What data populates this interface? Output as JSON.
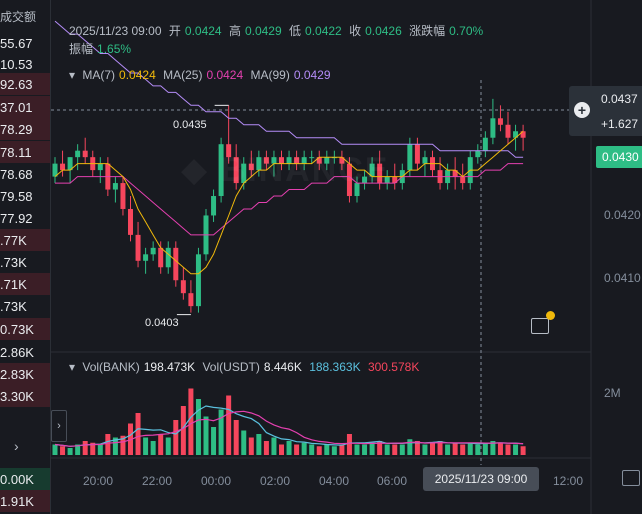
{
  "left_panel": {
    "header": "成交额",
    "values": [
      "55.67",
      "10.53",
      "92.63",
      "37.01",
      "78.29",
      "78.11",
      "78.68",
      "79.58",
      "77.92",
      ".77K",
      ".73K",
      ".71K",
      ".73K",
      "0.73K",
      "2.86K",
      "2.83K",
      "3.30K"
    ],
    "bottom_values": [
      "0.00K",
      "1.91K"
    ],
    "chevron": "›"
  },
  "ohlc": {
    "time": "2025/11/23 09:00",
    "open_label": "开",
    "open": "0.0424",
    "high_label": "高",
    "high": "0.0429",
    "low_label": "低",
    "low": "0.0422",
    "close_label": "收",
    "close": "0.0426",
    "change_label": "涨跌幅",
    "change": "0.70%",
    "amp_label": "振幅",
    "amp": "1.65%"
  },
  "ma": {
    "ma7_label": "MA(7)",
    "ma7": "0.0424",
    "ma25_label": "MA(25)",
    "ma25": "0.0424",
    "ma99_label": "MA(99)",
    "ma99": "0.0429"
  },
  "vol": {
    "bank_label": "Vol(BANK)",
    "bank": "198.473K",
    "usdt_label": "Vol(USDT)",
    "usdt": "8.446K",
    "usdt_ma1": "188.363K",
    "usdt_ma2": "300.578K"
  },
  "price_axis": {
    "crosshair_price": "0.0437",
    "crosshair_pct": "+1.627",
    "current_price": "0.0430",
    "ticks": [
      "0.0420",
      "0.0410"
    ],
    "vol_tick": "2M"
  },
  "hl_labels": {
    "high": "0.0435",
    "low": "0.0403"
  },
  "time_axis": {
    "ticks": [
      "20:00",
      "22:00",
      "00:00",
      "02:00",
      "04:00",
      "06:00",
      "12:00"
    ],
    "crosshair_time": "2025/11/23 09:00"
  },
  "colors": {
    "up": "#2ebd85",
    "down": "#f6465d",
    "ma7": "#f0b90b",
    "ma25": "#e440b0",
    "ma99": "#b48cf7",
    "bg": "#181a20"
  },
  "chart_data": {
    "type": "candlestick",
    "y_range": [
      0.0398,
      0.0442
    ],
    "candles": [
      [
        0.0424,
        0.0427,
        0.0423,
        0.0426
      ],
      [
        0.0426,
        0.0428,
        0.0424,
        0.0425
      ],
      [
        0.0425,
        0.0427,
        0.0423,
        0.0427
      ],
      [
        0.0427,
        0.0429,
        0.0425,
        0.0428
      ],
      [
        0.0428,
        0.043,
        0.0426,
        0.0427
      ],
      [
        0.0427,
        0.0428,
        0.0424,
        0.0425
      ],
      [
        0.0425,
        0.0427,
        0.0423,
        0.0426
      ],
      [
        0.0426,
        0.0427,
        0.0421,
        0.0422
      ],
      [
        0.0422,
        0.0424,
        0.042,
        0.0423
      ],
      [
        0.0423,
        0.0424,
        0.0418,
        0.0419
      ],
      [
        0.0419,
        0.0421,
        0.0414,
        0.0415
      ],
      [
        0.0415,
        0.0417,
        0.041,
        0.0411
      ],
      [
        0.0411,
        0.0413,
        0.0409,
        0.0412
      ],
      [
        0.0412,
        0.0414,
        0.0411,
        0.0413
      ],
      [
        0.0413,
        0.0414,
        0.0409,
        0.041
      ],
      [
        0.041,
        0.0414,
        0.0409,
        0.0413
      ],
      [
        0.0413,
        0.0414,
        0.0407,
        0.0408
      ],
      [
        0.0408,
        0.041,
        0.0405,
        0.0406
      ],
      [
        0.0406,
        0.0408,
        0.0403,
        0.0404
      ],
      [
        0.0404,
        0.0413,
        0.0403,
        0.0412
      ],
      [
        0.0412,
        0.0419,
        0.0411,
        0.0418
      ],
      [
        0.0418,
        0.0422,
        0.0417,
        0.0421
      ],
      [
        0.0421,
        0.043,
        0.042,
        0.0429
      ],
      [
        0.0429,
        0.0435,
        0.0426,
        0.0427
      ],
      [
        0.0427,
        0.0429,
        0.0422,
        0.0423
      ],
      [
        0.0423,
        0.0427,
        0.0422,
        0.0426
      ],
      [
        0.0426,
        0.0428,
        0.0424,
        0.0425
      ],
      [
        0.0425,
        0.0428,
        0.0424,
        0.0427
      ],
      [
        0.0427,
        0.0428,
        0.0425,
        0.0426
      ],
      [
        0.0426,
        0.0428,
        0.0424,
        0.0427
      ],
      [
        0.0427,
        0.0428,
        0.0425,
        0.0426
      ],
      [
        0.0426,
        0.0428,
        0.0425,
        0.0427
      ],
      [
        0.0427,
        0.0428,
        0.0425,
        0.0426
      ],
      [
        0.0426,
        0.0428,
        0.0425,
        0.0427
      ],
      [
        0.0427,
        0.0428,
        0.0426,
        0.0427
      ],
      [
        0.0427,
        0.0428,
        0.0425,
        0.0426
      ],
      [
        0.0426,
        0.0428,
        0.0425,
        0.0427
      ],
      [
        0.0427,
        0.0428,
        0.0426,
        0.0427
      ],
      [
        0.0427,
        0.0428,
        0.0425,
        0.0426
      ],
      [
        0.0426,
        0.0427,
        0.042,
        0.0421
      ],
      [
        0.0421,
        0.0424,
        0.042,
        0.0423
      ],
      [
        0.0423,
        0.0425,
        0.0422,
        0.0424
      ],
      [
        0.0424,
        0.0427,
        0.0423,
        0.0426
      ],
      [
        0.0426,
        0.0428,
        0.0422,
        0.0423
      ],
      [
        0.0423,
        0.0425,
        0.0422,
        0.0424
      ],
      [
        0.0424,
        0.0426,
        0.0422,
        0.0423
      ],
      [
        0.0423,
        0.0426,
        0.0422,
        0.0425
      ],
      [
        0.0425,
        0.043,
        0.0424,
        0.0429
      ],
      [
        0.0429,
        0.043,
        0.0425,
        0.0426
      ],
      [
        0.0426,
        0.0428,
        0.0424,
        0.0427
      ],
      [
        0.0427,
        0.0428,
        0.0424,
        0.0425
      ],
      [
        0.0425,
        0.0427,
        0.0422,
        0.0423
      ],
      [
        0.0423,
        0.0426,
        0.0422,
        0.0425
      ],
      [
        0.0425,
        0.0427,
        0.0422,
        0.0424
      ],
      [
        0.0424,
        0.0426,
        0.0422,
        0.0423
      ],
      [
        0.0423,
        0.0428,
        0.0422,
        0.0427
      ],
      [
        0.0427,
        0.0429,
        0.0426,
        0.0428
      ],
      [
        0.0428,
        0.0431,
        0.0427,
        0.043
      ],
      [
        0.043,
        0.0436,
        0.0429,
        0.0433
      ],
      [
        0.0433,
        0.0435,
        0.0431,
        0.0432
      ],
      [
        0.0432,
        0.0434,
        0.0429,
        0.043
      ],
      [
        0.043,
        0.0432,
        0.0428,
        0.0431
      ],
      [
        0.0431,
        0.0432,
        0.0428,
        0.043
      ]
    ],
    "volumes": [
      0.3,
      0.25,
      0.2,
      0.3,
      0.4,
      0.35,
      0.3,
      0.6,
      0.5,
      0.55,
      0.9,
      1.2,
      0.5,
      0.4,
      0.6,
      0.5,
      1.0,
      1.4,
      1.9,
      1.6,
      1.1,
      0.8,
      1.3,
      1.7,
      1.0,
      0.7,
      0.5,
      0.6,
      0.4,
      0.5,
      0.3,
      0.4,
      0.3,
      0.35,
      0.3,
      0.25,
      0.3,
      0.25,
      0.3,
      0.6,
      0.3,
      0.3,
      0.35,
      0.4,
      0.3,
      0.3,
      0.3,
      0.45,
      0.4,
      0.3,
      0.35,
      0.4,
      0.3,
      0.35,
      0.3,
      0.35,
      0.3,
      0.35,
      0.4,
      0.35,
      0.3,
      0.3,
      0.25
    ],
    "ma7": [
      0.0424,
      0.0425,
      0.0425,
      0.0426,
      0.0426,
      0.0426,
      0.0426,
      0.0426,
      0.0425,
      0.0424,
      0.0422,
      0.0419,
      0.0417,
      0.0415,
      0.0413,
      0.0412,
      0.0411,
      0.041,
      0.0409,
      0.0409,
      0.041,
      0.0412,
      0.0415,
      0.0418,
      0.0421,
      0.0423,
      0.0424,
      0.0425,
      0.0425,
      0.0426,
      0.0426,
      0.0426,
      0.0426,
      0.0426,
      0.0426,
      0.0427,
      0.0427,
      0.0427,
      0.0427,
      0.0426,
      0.0425,
      0.0425,
      0.0424,
      0.0424,
      0.0424,
      0.0424,
      0.0424,
      0.0425,
      0.0425,
      0.0426,
      0.0426,
      0.0426,
      0.0425,
      0.0425,
      0.0424,
      0.0425,
      0.0425,
      0.0426,
      0.0427,
      0.0428,
      0.0429,
      0.043,
      0.0431
    ],
    "ma25": [
      0.0423,
      0.0423,
      0.0423,
      0.0424,
      0.0424,
      0.0424,
      0.0424,
      0.0424,
      0.0424,
      0.0424,
      0.0423,
      0.0422,
      0.0421,
      0.042,
      0.0419,
      0.0418,
      0.0417,
      0.0416,
      0.0415,
      0.0415,
      0.0415,
      0.0415,
      0.0416,
      0.0417,
      0.0418,
      0.0419,
      0.0419,
      0.042,
      0.042,
      0.0421,
      0.0421,
      0.0422,
      0.0422,
      0.0422,
      0.0423,
      0.0423,
      0.0423,
      0.0424,
      0.0424,
      0.0424,
      0.0423,
      0.0423,
      0.0423,
      0.0423,
      0.0423,
      0.0423,
      0.0424,
      0.0424,
      0.0424,
      0.0424,
      0.0424,
      0.0424,
      0.0424,
      0.0424,
      0.0424,
      0.0424,
      0.0424,
      0.0425,
      0.0425,
      0.0425,
      0.0426,
      0.0426,
      0.0426
    ],
    "ma99": [
      0.0448,
      0.0447,
      0.0446,
      0.0446,
      0.0445,
      0.0444,
      0.0443,
      0.0443,
      0.0442,
      0.0441,
      0.044,
      0.044,
      0.0439,
      0.0438,
      0.0438,
      0.0437,
      0.0437,
      0.0436,
      0.0435,
      0.0435,
      0.0434,
      0.0434,
      0.0434,
      0.0433,
      0.0433,
      0.0432,
      0.0432,
      0.0432,
      0.0431,
      0.0431,
      0.0431,
      0.0431,
      0.043,
      0.043,
      0.043,
      0.043,
      0.043,
      0.043,
      0.0429,
      0.0429,
      0.0429,
      0.0429,
      0.0429,
      0.0429,
      0.0429,
      0.0429,
      0.0429,
      0.0429,
      0.0429,
      0.0429,
      0.0429,
      0.0428,
      0.0428,
      0.0428,
      0.0428,
      0.0428,
      0.0428,
      0.0428,
      0.0428,
      0.0428,
      0.0428,
      0.0427,
      0.0427
    ]
  }
}
